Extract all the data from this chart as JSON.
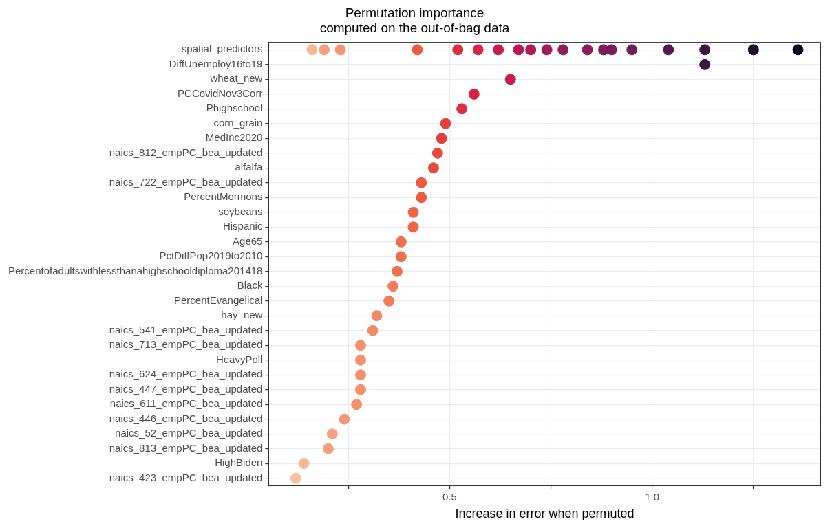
{
  "chart_data": {
    "type": "scatter",
    "orientation": "horizontal",
    "title": "Permutation importance",
    "subtitle": "computed on the out-of-bag data",
    "xlabel": "Increase in error when permuted",
    "categories": [
      "spatial_predictors",
      "DiffUnemploy16to19",
      "wheat_new",
      "PCCovidNov3Corr",
      "Phighschool",
      "corn_grain",
      "MedInc2020",
      "naics_812_empPC_bea_updated",
      "alfalfa",
      "naics_722_empPC_bea_updated",
      "PercentMormons",
      "soybeans",
      "Hispanic",
      "Age65",
      "PctDiffPop2019to2010",
      "Percentofadultswithlessthanahighschooldiploma201418",
      "Black",
      "PercentEvangelical",
      "hay_new",
      "naics_541_empPC_bea_updated",
      "naics_713_empPC_bea_updated",
      "HeavyPoll",
      "naics_624_empPC_bea_updated",
      "naics_447_empPC_bea_updated",
      "naics_611_empPC_bea_updated",
      "naics_446_empPC_bea_updated",
      "naics_52_empPC_bea_updated",
      "naics_813_empPC_bea_updated",
      "HighBiden",
      "naics_423_empPC_bea_updated"
    ],
    "series": [
      {
        "x": [
          "spatial_predictors",
          "spatial_predictors",
          "spatial_predictors",
          "spatial_predictors",
          "spatial_predictors",
          "spatial_predictors",
          "spatial_predictors",
          "spatial_predictors",
          "spatial_predictors",
          "spatial_predictors",
          "spatial_predictors",
          "spatial_predictors",
          "spatial_predictors",
          "spatial_predictors",
          "spatial_predictors",
          "spatial_predictors",
          "spatial_predictors",
          "spatial_predictors",
          "spatial_predictors"
        ],
        "values": [
          0.16,
          0.19,
          0.23,
          0.42,
          0.52,
          0.57,
          0.62,
          0.67,
          0.7,
          0.74,
          0.78,
          0.84,
          0.88,
          0.9,
          0.95,
          1.04,
          1.13,
          1.25,
          1.36
        ],
        "colors": [
          "#f6b894",
          "#f4a07c",
          "#f39672",
          "#eb5a42",
          "#dd2f41",
          "#d72445",
          "#ca1a4e",
          "#bd1655",
          "#b2185a",
          "#a11a5b",
          "#931b5c",
          "#8a1b5c",
          "#7e1e5b",
          "#771e5a",
          "#701f57",
          "#57184f",
          "#3d1642",
          "#1f0f2e",
          "#03051a"
        ]
      },
      {
        "values": [
          null,
          1.13,
          0.65,
          0.56,
          0.53,
          0.49,
          0.48,
          0.47,
          0.46,
          0.43,
          0.43,
          0.41,
          0.41,
          0.38,
          0.38,
          0.37,
          0.36,
          0.35,
          0.32,
          0.31,
          0.28,
          0.28,
          0.28,
          0.28,
          0.27,
          0.24,
          0.21,
          0.2,
          0.14,
          0.12
        ],
        "colors": [
          null,
          "#3d1642",
          "#ca1a4e",
          "#d72445",
          "#dd2f41",
          "#e43f3d",
          "#e43f3d",
          "#e74b3d",
          "#e74b3d",
          "#eb5a42",
          "#eb5a42",
          "#ee6548",
          "#ee6548",
          "#ef6f4f",
          "#ef6f4f",
          "#ef6f4f",
          "#f07c58",
          "#f07c58",
          "#f28a66",
          "#f28a66",
          "#f3916a",
          "#f3916a",
          "#f3916a",
          "#f3916a",
          "#f3916a",
          "#f39672",
          "#f4a07c",
          "#f4a07c",
          "#f6b894",
          "#f7c0a0"
        ]
      }
    ],
    "xlim": [
      0.053,
      1.416
    ],
    "xticks": [
      {
        "value": 0.25,
        "label": null
      },
      0.5,
      {
        "value": 0.75,
        "label": null
      },
      {
        "value": 1,
        "label": "1.0"
      },
      {
        "value": 1.25,
        "label": null
      }
    ],
    "grid": true,
    "legend": false,
    "marker": "circle"
  }
}
